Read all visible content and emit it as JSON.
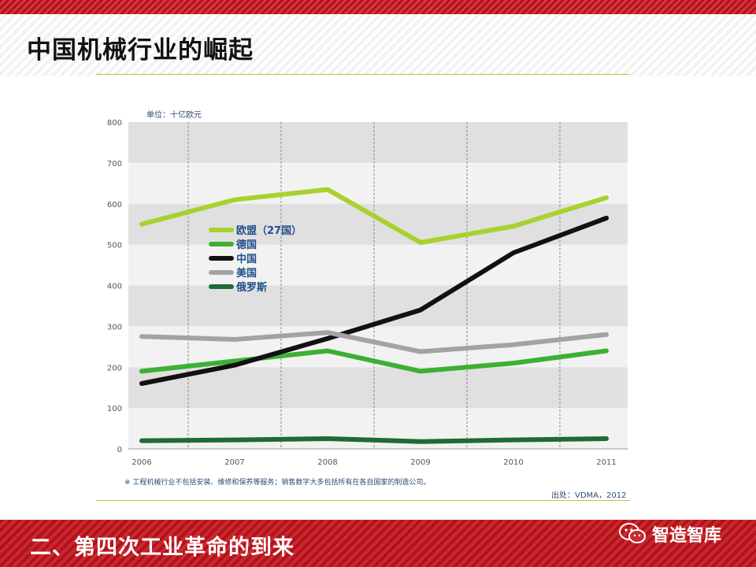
{
  "slide": {
    "title": "中国机械行业的崛起",
    "section_title": "二、第四次工业革命的到来",
    "brand": "智造智库",
    "brand_icon": "wechat-icon"
  },
  "chart_data": {
    "type": "line",
    "unit_label": "单位：十亿欧元",
    "x": [
      "2006",
      "2007",
      "2008",
      "2009",
      "2010",
      "2011"
    ],
    "ylim": [
      0,
      800
    ],
    "yticks": [
      0,
      100,
      200,
      300,
      400,
      500,
      600,
      700,
      800
    ],
    "grid": "alternating horizontal bands, dashed vertical lines",
    "legend_position": "upper-left",
    "series": [
      {
        "name": "欧盟（27国）",
        "color": "#a9d12e",
        "values": [
          550,
          610,
          635,
          505,
          545,
          615
        ]
      },
      {
        "name": "德国",
        "color": "#3cb033",
        "values": [
          190,
          215,
          240,
          190,
          210,
          240
        ]
      },
      {
        "name": "中国",
        "color": "#111111",
        "values": [
          160,
          205,
          270,
          340,
          480,
          565
        ]
      },
      {
        "name": "美国",
        "color": "#a3a3a3",
        "values": [
          275,
          268,
          285,
          238,
          255,
          280
        ]
      },
      {
        "name": "俄罗斯",
        "color": "#1e6b35",
        "values": [
          20,
          22,
          25,
          18,
          22,
          25
        ]
      }
    ],
    "footnote": "※ 工程机械行业不包括安装、维修和保养等服务；销售数字大多包括所有在各自国家的制造公司。",
    "source": "出处：VDMA，2012"
  }
}
